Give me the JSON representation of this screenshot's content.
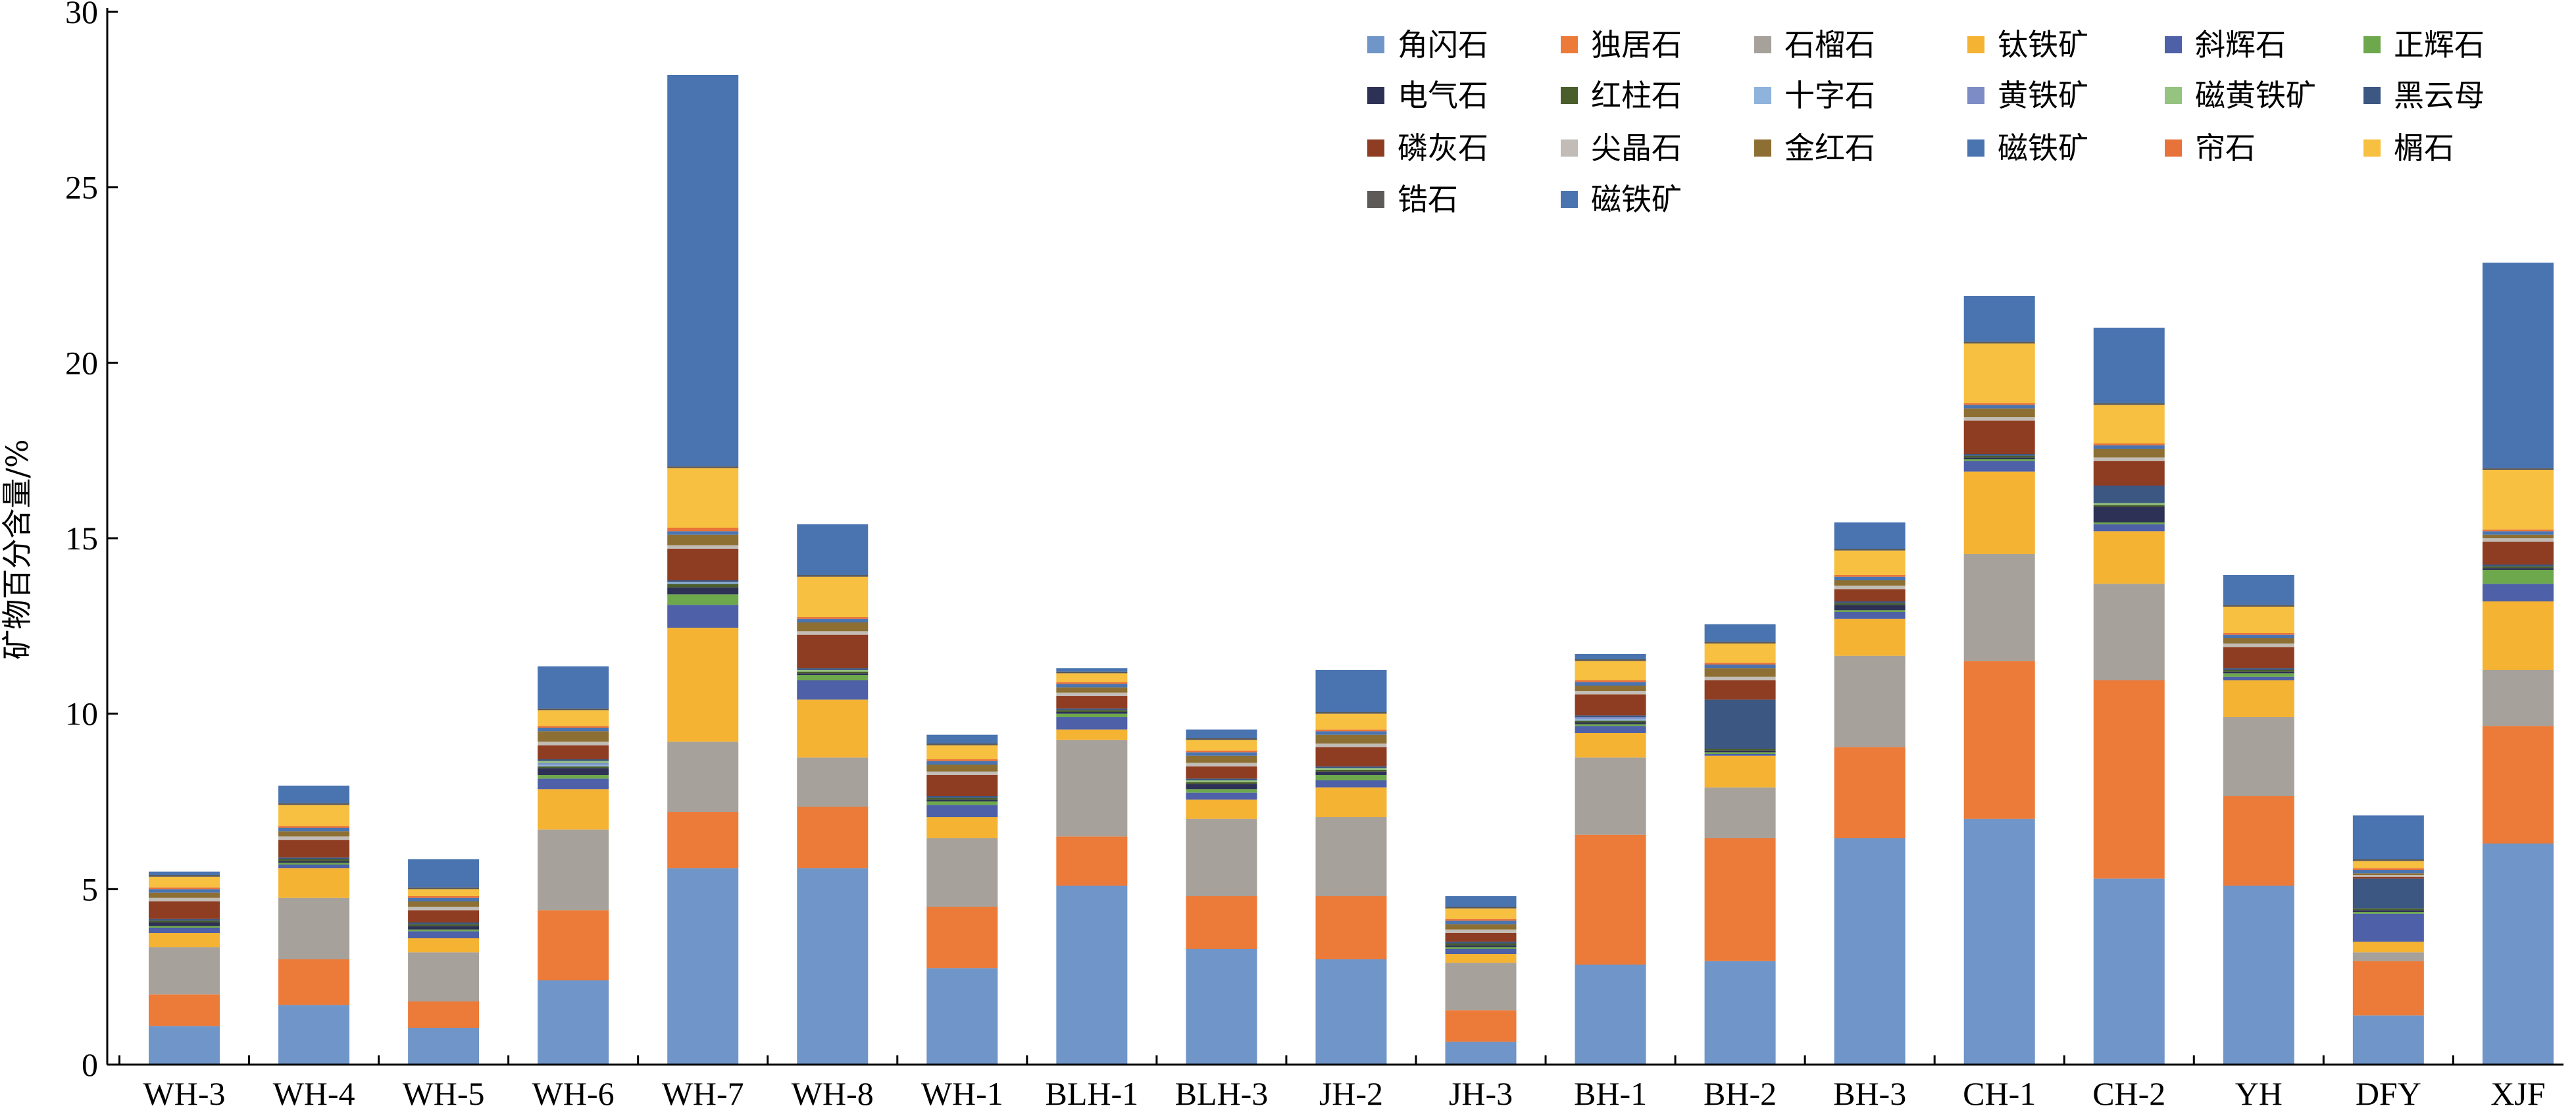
{
  "chart_data": {
    "type": "bar",
    "stacked": true,
    "title": "",
    "xlabel": "",
    "ylabel": "矿物百分含量/%",
    "ylim": [
      0,
      30
    ],
    "yticks": [
      0,
      5,
      10,
      15,
      20,
      25,
      30
    ],
    "grid": false,
    "legend_position": "top-right",
    "categories": [
      "WH-3",
      "WH-4",
      "WH-5",
      "WH-6",
      "WH-7",
      "WH-8",
      "WH-1",
      "BLH-1",
      "BLH-3",
      "JH-2",
      "JH-3",
      "BH-1",
      "BH-2",
      "BH-3",
      "CH-1",
      "CH-2",
      "YH",
      "DFY",
      "XJF"
    ],
    "series": [
      {
        "name": "角闪石",
        "color": "#6f95c9",
        "values": [
          1.1,
          1.7,
          1.05,
          2.4,
          5.6,
          5.6,
          2.75,
          5.1,
          3.3,
          3.0,
          0.65,
          2.85,
          2.95,
          6.45,
          7.0,
          5.3,
          5.1,
          1.4,
          6.3
        ]
      },
      {
        "name": "独居石",
        "color": "#ec7b3a",
        "values": [
          0.9,
          1.3,
          0.75,
          2.0,
          1.6,
          1.75,
          1.75,
          1.4,
          1.5,
          1.8,
          0.9,
          3.7,
          3.5,
          2.6,
          4.5,
          5.65,
          2.55,
          1.55,
          3.35
        ]
      },
      {
        "name": "石榴石",
        "color": "#a6a19b",
        "values": [
          1.35,
          1.75,
          1.4,
          2.3,
          2.0,
          1.4,
          1.95,
          2.75,
          2.2,
          2.25,
          1.35,
          2.2,
          1.45,
          2.6,
          3.05,
          2.75,
          2.25,
          0.25,
          1.6
        ]
      },
      {
        "name": "钛铁矿",
        "color": "#f5b334",
        "values": [
          0.4,
          0.85,
          0.4,
          1.15,
          3.25,
          1.65,
          0.6,
          0.3,
          0.55,
          0.85,
          0.25,
          0.7,
          0.9,
          1.05,
          2.35,
          1.5,
          1.05,
          0.3,
          1.95
        ]
      },
      {
        "name": "斜辉石",
        "color": "#4d60a8",
        "values": [
          0.15,
          0.1,
          0.2,
          0.3,
          0.65,
          0.55,
          0.35,
          0.35,
          0.2,
          0.2,
          0.15,
          0.2,
          0.05,
          0.2,
          0.3,
          0.2,
          0.1,
          0.8,
          0.5
        ]
      },
      {
        "name": "正辉石",
        "color": "#6ea84c",
        "values": [
          0.05,
          0.05,
          0.05,
          0.1,
          0.3,
          0.15,
          0.1,
          0.1,
          0.1,
          0.15,
          0.05,
          0.05,
          0.05,
          0.05,
          0.05,
          0.05,
          0.1,
          0.05,
          0.4
        ]
      },
      {
        "name": "电气石",
        "color": "#2e3156",
        "values": [
          0.1,
          0.05,
          0.1,
          0.2,
          0.2,
          0.05,
          0.05,
          0.05,
          0.15,
          0.1,
          0.05,
          0.05,
          0.05,
          0.15,
          0.05,
          0.45,
          0.05,
          0.05,
          0.05
        ]
      },
      {
        "name": "红柱石",
        "color": "#4a5e2b",
        "values": [
          0.05,
          0.05,
          0.05,
          0.05,
          0.1,
          0.05,
          0.05,
          0.05,
          0.05,
          0.05,
          0.05,
          0.05,
          0.05,
          0.05,
          0.05,
          0.05,
          0.05,
          0.05,
          0.05
        ]
      },
      {
        "name": "十字石",
        "color": "#8eb3dc",
        "values": [
          0.0,
          0.0,
          0.0,
          0.05,
          0.05,
          0.0,
          0.0,
          0.0,
          0.0,
          0.0,
          0.0,
          0.05,
          0.0,
          0.0,
          0.0,
          0.0,
          0.0,
          0.0,
          0.0
        ]
      },
      {
        "name": "黄铁矿",
        "color": "#7d8cc4",
        "values": [
          0.0,
          0.0,
          0.0,
          0.05,
          0.0,
          0.0,
          0.0,
          0.0,
          0.0,
          0.0,
          0.0,
          0.05,
          0.0,
          0.0,
          0.0,
          0.0,
          0.0,
          0.0,
          0.0
        ]
      },
      {
        "name": "磁黄铁矿",
        "color": "#94c47f",
        "values": [
          0.0,
          0.0,
          0.0,
          0.05,
          0.0,
          0.05,
          0.0,
          0.0,
          0.05,
          0.05,
          0.0,
          0.0,
          0.0,
          0.0,
          0.0,
          0.05,
          0.0,
          0.0,
          0.0
        ]
      },
      {
        "name": "黑云母",
        "color": "#3c5782",
        "values": [
          0.05,
          0.05,
          0.05,
          0.05,
          0.05,
          0.05,
          0.05,
          0.05,
          0.05,
          0.05,
          0.05,
          0.05,
          1.4,
          0.05,
          0.05,
          0.5,
          0.05,
          0.85,
          0.05
        ]
      },
      {
        "name": "磷灰石",
        "color": "#8e3d22",
        "values": [
          0.5,
          0.5,
          0.35,
          0.4,
          0.9,
          0.95,
          0.6,
          0.35,
          0.35,
          0.55,
          0.25,
          0.6,
          0.55,
          0.35,
          0.95,
          0.7,
          0.6,
          0.05,
          0.65
        ]
      },
      {
        "name": "尖晶石",
        "color": "#c2bcb6",
        "values": [
          0.1,
          0.1,
          0.1,
          0.1,
          0.1,
          0.1,
          0.1,
          0.1,
          0.1,
          0.1,
          0.1,
          0.1,
          0.1,
          0.1,
          0.1,
          0.1,
          0.1,
          0.05,
          0.1
        ]
      },
      {
        "name": "金红石",
        "color": "#8d6f33",
        "values": [
          0.15,
          0.15,
          0.15,
          0.3,
          0.3,
          0.25,
          0.2,
          0.15,
          0.2,
          0.25,
          0.15,
          0.15,
          0.25,
          0.15,
          0.25,
          0.25,
          0.15,
          0.05,
          0.1
        ]
      },
      {
        "name": "磁铁矿",
        "color": "#4a74b0",
        "values": [
          0.1,
          0.1,
          0.1,
          0.1,
          0.1,
          0.1,
          0.1,
          0.1,
          0.1,
          0.1,
          0.1,
          0.1,
          0.1,
          0.1,
          0.1,
          0.1,
          0.1,
          0.1,
          0.1
        ]
      },
      {
        "name": "帘石",
        "color": "#e8733a",
        "values": [
          0.05,
          0.05,
          0.05,
          0.05,
          0.1,
          0.05,
          0.05,
          0.05,
          0.05,
          0.05,
          0.05,
          0.05,
          0.05,
          0.05,
          0.05,
          0.05,
          0.05,
          0.05,
          0.05
        ]
      },
      {
        "name": "榍石",
        "color": "#f7c040",
        "values": [
          0.3,
          0.6,
          0.2,
          0.45,
          1.7,
          1.15,
          0.4,
          0.25,
          0.3,
          0.45,
          0.3,
          0.55,
          0.55,
          0.7,
          1.7,
          1.1,
          0.75,
          0.2,
          1.7
        ]
      },
      {
        "name": "锆石",
        "color": "#5c5b5a",
        "values": [
          0.05,
          0.05,
          0.05,
          0.05,
          0.05,
          0.05,
          0.05,
          0.05,
          0.05,
          0.05,
          0.05,
          0.05,
          0.05,
          0.05,
          0.05,
          0.05,
          0.05,
          0.05,
          0.05
        ]
      },
      {
        "name": "磁铁矿",
        "color": "#4a74b0",
        "values": [
          0.1,
          0.5,
          0.8,
          1.2,
          11.15,
          1.45,
          0.25,
          0.1,
          0.25,
          1.2,
          0.3,
          0.15,
          0.5,
          0.75,
          1.3,
          2.15,
          0.85,
          1.25,
          5.85
        ]
      }
    ]
  }
}
